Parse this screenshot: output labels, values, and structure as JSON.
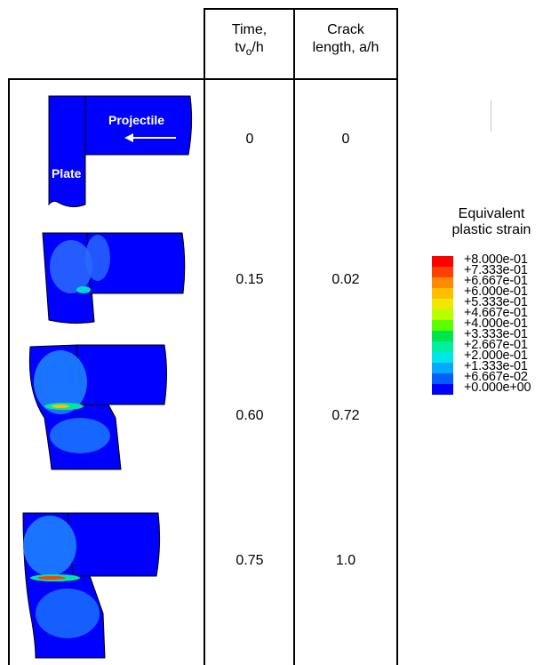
{
  "table": {
    "header": {
      "time_line1": "Time,",
      "time_line2_main": "tv",
      "time_line2_sub": "o",
      "time_line2_end": "/h",
      "crack_line1": "Crack",
      "crack_line2": "length, a/h"
    },
    "rows": [
      {
        "time": "0",
        "crack": "0"
      },
      {
        "time": "0.15",
        "crack": "0.02"
      },
      {
        "time": "0.60",
        "crack": "0.72"
      },
      {
        "time": "0.75",
        "crack": "1.0"
      }
    ],
    "labels": {
      "projectile": "Projectile",
      "plate": "Plate"
    }
  },
  "legend": {
    "title_line1": "Equivalent",
    "title_line2": "plastic strain",
    "items": [
      {
        "label": "+8.000e-01",
        "color": "#ff0000"
      },
      {
        "label": "+7.333e-01",
        "color": "#ff4000"
      },
      {
        "label": "+6.667e-01",
        "color": "#ff8a00"
      },
      {
        "label": "+6.000e-01",
        "color": "#ffbf00"
      },
      {
        "label": "+5.333e-01",
        "color": "#f0e800"
      },
      {
        "label": "+4.667e-01",
        "color": "#b8ff00"
      },
      {
        "label": "+4.000e-01",
        "color": "#5cff00"
      },
      {
        "label": "+3.333e-01",
        "color": "#00e64a"
      },
      {
        "label": "+2.667e-01",
        "color": "#00f0a0"
      },
      {
        "label": "+2.000e-01",
        "color": "#00e6e6"
      },
      {
        "label": "+1.333e-01",
        "color": "#00aaff"
      },
      {
        "label": "+6.667e-02",
        "color": "#0060ff"
      },
      {
        "label": "+0.000e+00",
        "color": "#0000ff"
      }
    ]
  }
}
